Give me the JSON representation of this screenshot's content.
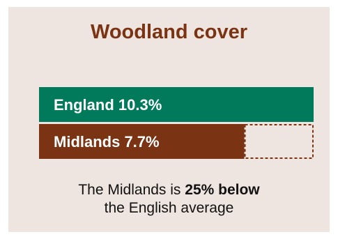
{
  "title": "Woodland cover",
  "colors": {
    "background": "#efe5e0",
    "england": "#007a5a",
    "midlands": "#7a3413",
    "title": "#7a3413"
  },
  "chart_data": {
    "type": "bar",
    "orientation": "horizontal",
    "title": "Woodland cover",
    "unit": "%",
    "categories": [
      "England",
      "Midlands"
    ],
    "values": [
      10.3,
      7.7
    ],
    "labels": [
      "England 10.3%",
      "Midlands 7.7%"
    ],
    "reference": "England",
    "gap_outline": "dashed",
    "grid": false,
    "legend": "none"
  },
  "caption": {
    "prefix": "The Midlands is ",
    "emphasis": "25% below",
    "suffix": "the English average"
  }
}
